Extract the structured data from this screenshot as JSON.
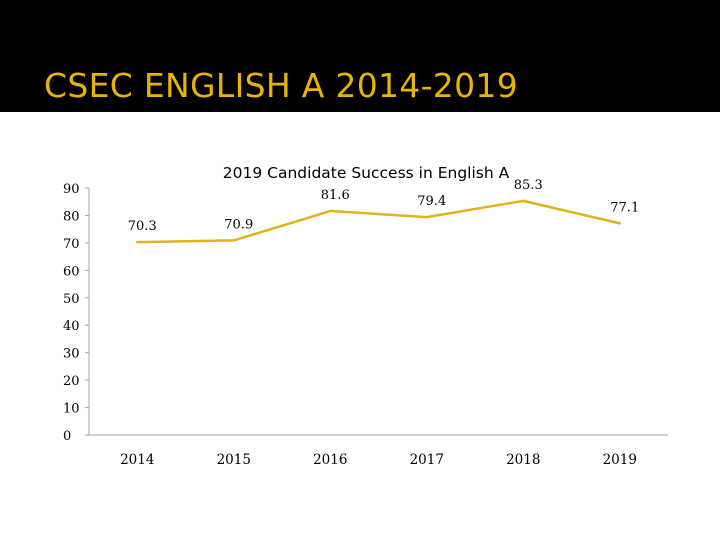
{
  "slide": {
    "title": "CSEC ENGLISH A 2014-2019",
    "title_color": "#E8B400",
    "band_color": "#000000"
  },
  "chart_data": {
    "type": "line",
    "title": "2019 Candidate Success in English A",
    "categories": [
      "2014",
      "2015",
      "2016",
      "2017",
      "2018",
      "2019"
    ],
    "series": [
      {
        "values": [
          70.3,
          70.9,
          81.6,
          79.4,
          85.3,
          77.1
        ],
        "color": "#E0B21E"
      }
    ],
    "data_labels": [
      "70.3",
      "70.9",
      "81.6",
      "79.4",
      "85.3",
      "77.1"
    ],
    "yticks": [
      "0",
      "10",
      "20",
      "30",
      "40",
      "50",
      "60",
      "70",
      "80",
      "90"
    ],
    "ylim": [
      0,
      90
    ],
    "grid": false,
    "legend": "none",
    "xlabel": "",
    "ylabel": ""
  }
}
